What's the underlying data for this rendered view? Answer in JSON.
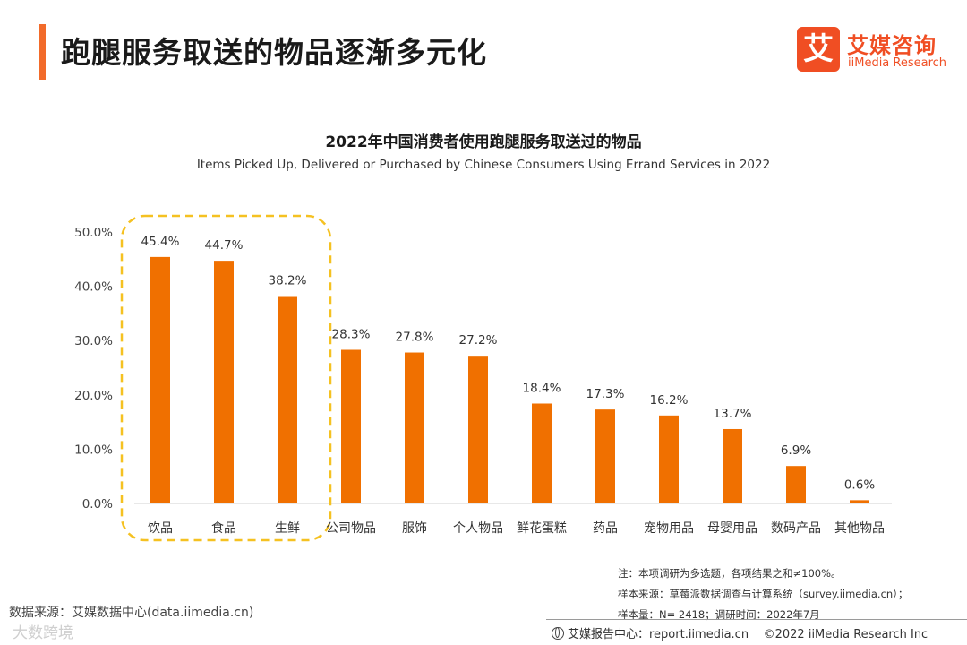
{
  "header": {
    "title": "跑腿服务取送的物品逐渐多元化"
  },
  "logo": {
    "mark": "艾",
    "name_cn": "艾媒咨询",
    "name_en": "iiMedia Research"
  },
  "chart_data": {
    "type": "bar",
    "title": "2022年中国消费者使用跑腿服务取送过的物品",
    "subtitle": "Items Picked Up, Delivered or Purchased by Chinese Consumers Using Errand Services in 2022",
    "categories": [
      "饮品",
      "食品",
      "生鲜",
      "公司物品",
      "服饰",
      "个人物品",
      "鲜花蛋糕",
      "药品",
      "宠物用品",
      "母婴用品",
      "数码产品",
      "其他物品"
    ],
    "values": [
      45.4,
      44.7,
      38.2,
      28.3,
      27.8,
      27.2,
      18.4,
      17.3,
      16.2,
      13.7,
      6.9,
      0.6
    ],
    "data_labels": [
      "45.4%",
      "44.7%",
      "38.2%",
      "28.3%",
      "27.8%",
      "27.2%",
      "18.4%",
      "17.3%",
      "16.2%",
      "13.7%",
      "6.9%",
      "0.6%"
    ],
    "y_ticks": [
      0,
      10,
      20,
      30,
      40,
      50
    ],
    "y_tick_labels": [
      "0.0%",
      "10.0%",
      "20.0%",
      "30.0%",
      "40.0%",
      "50.0%"
    ],
    "ylim": [
      0,
      50
    ],
    "xlabel": "",
    "ylabel": "",
    "grid": false,
    "highlight": {
      "categories": [
        "饮品",
        "食品",
        "生鲜"
      ],
      "style": "dashed-rounded-box"
    },
    "colors": {
      "bar": "#f07000",
      "highlight": "#f5c121"
    }
  },
  "notes": [
    "注：本项调研为多选题，各项结果之和≠100%。",
    "样本来源：草莓派数据调查与计算系统（survey.iimedia.cn）；",
    "样本量：N= 2418；调研时间：2022年7月"
  ],
  "footer": {
    "data_source": "数据来源：艾媒数据中心(data.iimedia.cn)",
    "watermark": "大数跨境",
    "report_center": "艾媒报告中心：report.iimedia.cn",
    "copyright": "©2022  iiMedia Research  Inc"
  }
}
